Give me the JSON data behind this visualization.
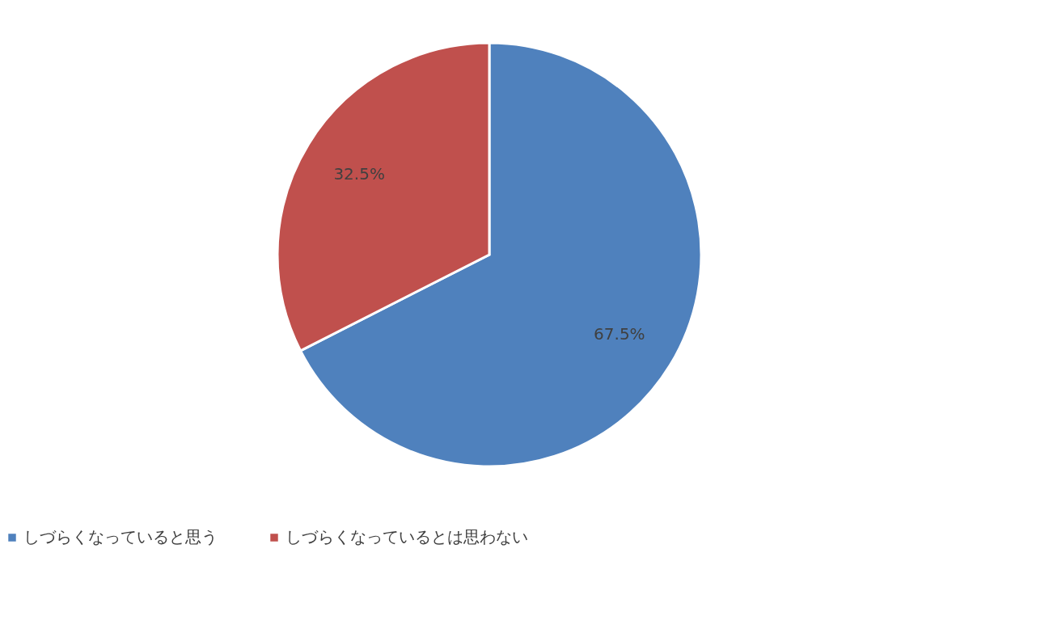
{
  "chart_data": {
    "type": "pie",
    "categories": [
      "しづらくなっていると思う",
      "しづらくなっているとは思わない"
    ],
    "values": [
      67.5,
      32.5
    ],
    "colors": [
      "#4f81bd",
      "#c0504d"
    ],
    "value_labels": [
      "67.5%",
      "32.5%"
    ],
    "legend": "bottom"
  }
}
